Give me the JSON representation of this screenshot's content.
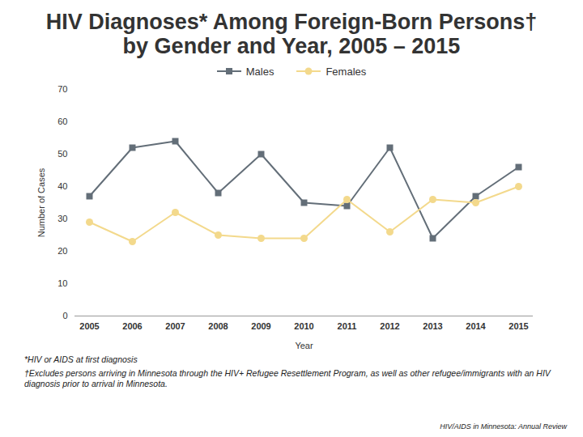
{
  "chart_data": {
    "type": "line",
    "title": "HIV Diagnoses* Among Foreign-Born Persons† by Gender and Year, 2005 – 2015",
    "x_label": "Year",
    "y_label": "Number of Cases",
    "categories": [
      "2005",
      "2006",
      "2007",
      "2008",
      "2009",
      "2010",
      "2011",
      "2012",
      "2013",
      "2014",
      "2015"
    ],
    "series": [
      {
        "name": "Males",
        "color": "#636e78",
        "marker": "square",
        "line_style": "solid",
        "values": [
          37,
          52,
          54,
          38,
          50,
          35,
          34,
          52,
          24,
          37,
          46
        ]
      },
      {
        "name": "Females",
        "color": "#f3d98c",
        "marker": "circle",
        "line_style": "solid",
        "values": [
          29,
          23,
          32,
          25,
          24,
          24,
          36,
          26,
          36,
          35,
          40
        ]
      }
    ],
    "ylim": [
      0,
      70
    ],
    "yticks": [
      0,
      10,
      20,
      30,
      40,
      50,
      60,
      70
    ],
    "grid": false,
    "legend": "top",
    "annotations": [
      "*HIV or AIDS at first diagnosis",
      "†Excludes persons arriving in Minnesota through the HIV+ Refugee Resettlement Program, as well as other refugee/immigrants with an HIV diagnosis prior to arrival in Minnesota.",
      "HIV/AIDS in Minnesota: Annual Review"
    ]
  }
}
